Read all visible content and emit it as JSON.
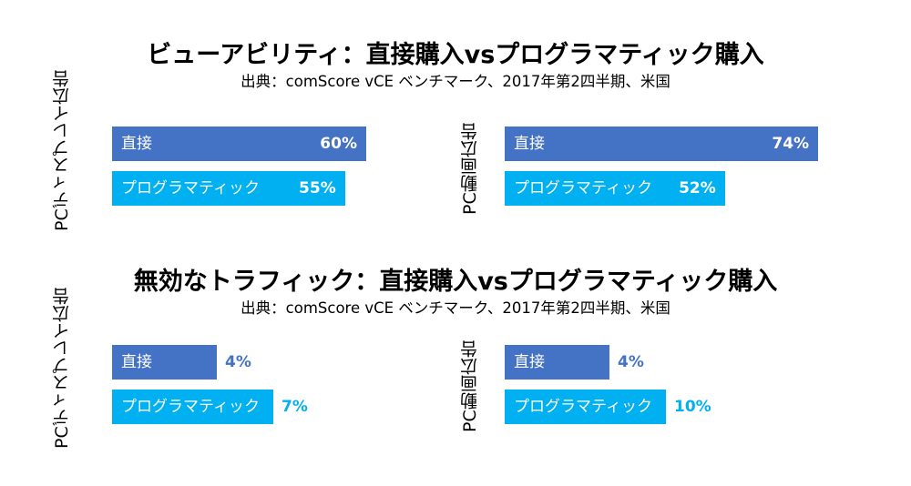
{
  "colors": {
    "direct": "#4472C4",
    "programmatic": "#00B0F0"
  },
  "chart_data": [
    {
      "type": "bar",
      "orientation": "horizontal",
      "title": "ビューアビリティ：直接購入vsプログラマティック購入",
      "subtitle": "出典：comScore vCE ベンチマーク、2017年第2四半期、米国",
      "xlim": [
        0,
        100
      ],
      "panels": [
        {
          "label": "PCディスプレイ広告",
          "categories": [
            "直接",
            "プログラマティック"
          ],
          "values": [
            60,
            55
          ],
          "value_labels": [
            "60%",
            "55%"
          ]
        },
        {
          "label": "PC動画広告",
          "categories": [
            "直接",
            "プログラマティック"
          ],
          "values": [
            74,
            52
          ],
          "value_labels": [
            "74%",
            "52%"
          ]
        }
      ]
    },
    {
      "type": "bar",
      "orientation": "horizontal",
      "title": "無効なトラフィック：直接購入vsプログラマティック購入",
      "subtitle": "出典：comScore vCE ベンチマーク、2017年第2四半期、米国",
      "xlim": [
        0,
        100
      ],
      "panels": [
        {
          "label": "PCディスプレイ広告",
          "categories": [
            "直接",
            "プログラマティック"
          ],
          "values": [
            4,
            7
          ],
          "value_labels": [
            "4%",
            "7%"
          ]
        },
        {
          "label": "PC動画広告",
          "categories": [
            "直接",
            "プログラマティック"
          ],
          "values": [
            4,
            10
          ],
          "value_labels": [
            "4%",
            "10%"
          ]
        }
      ]
    }
  ]
}
